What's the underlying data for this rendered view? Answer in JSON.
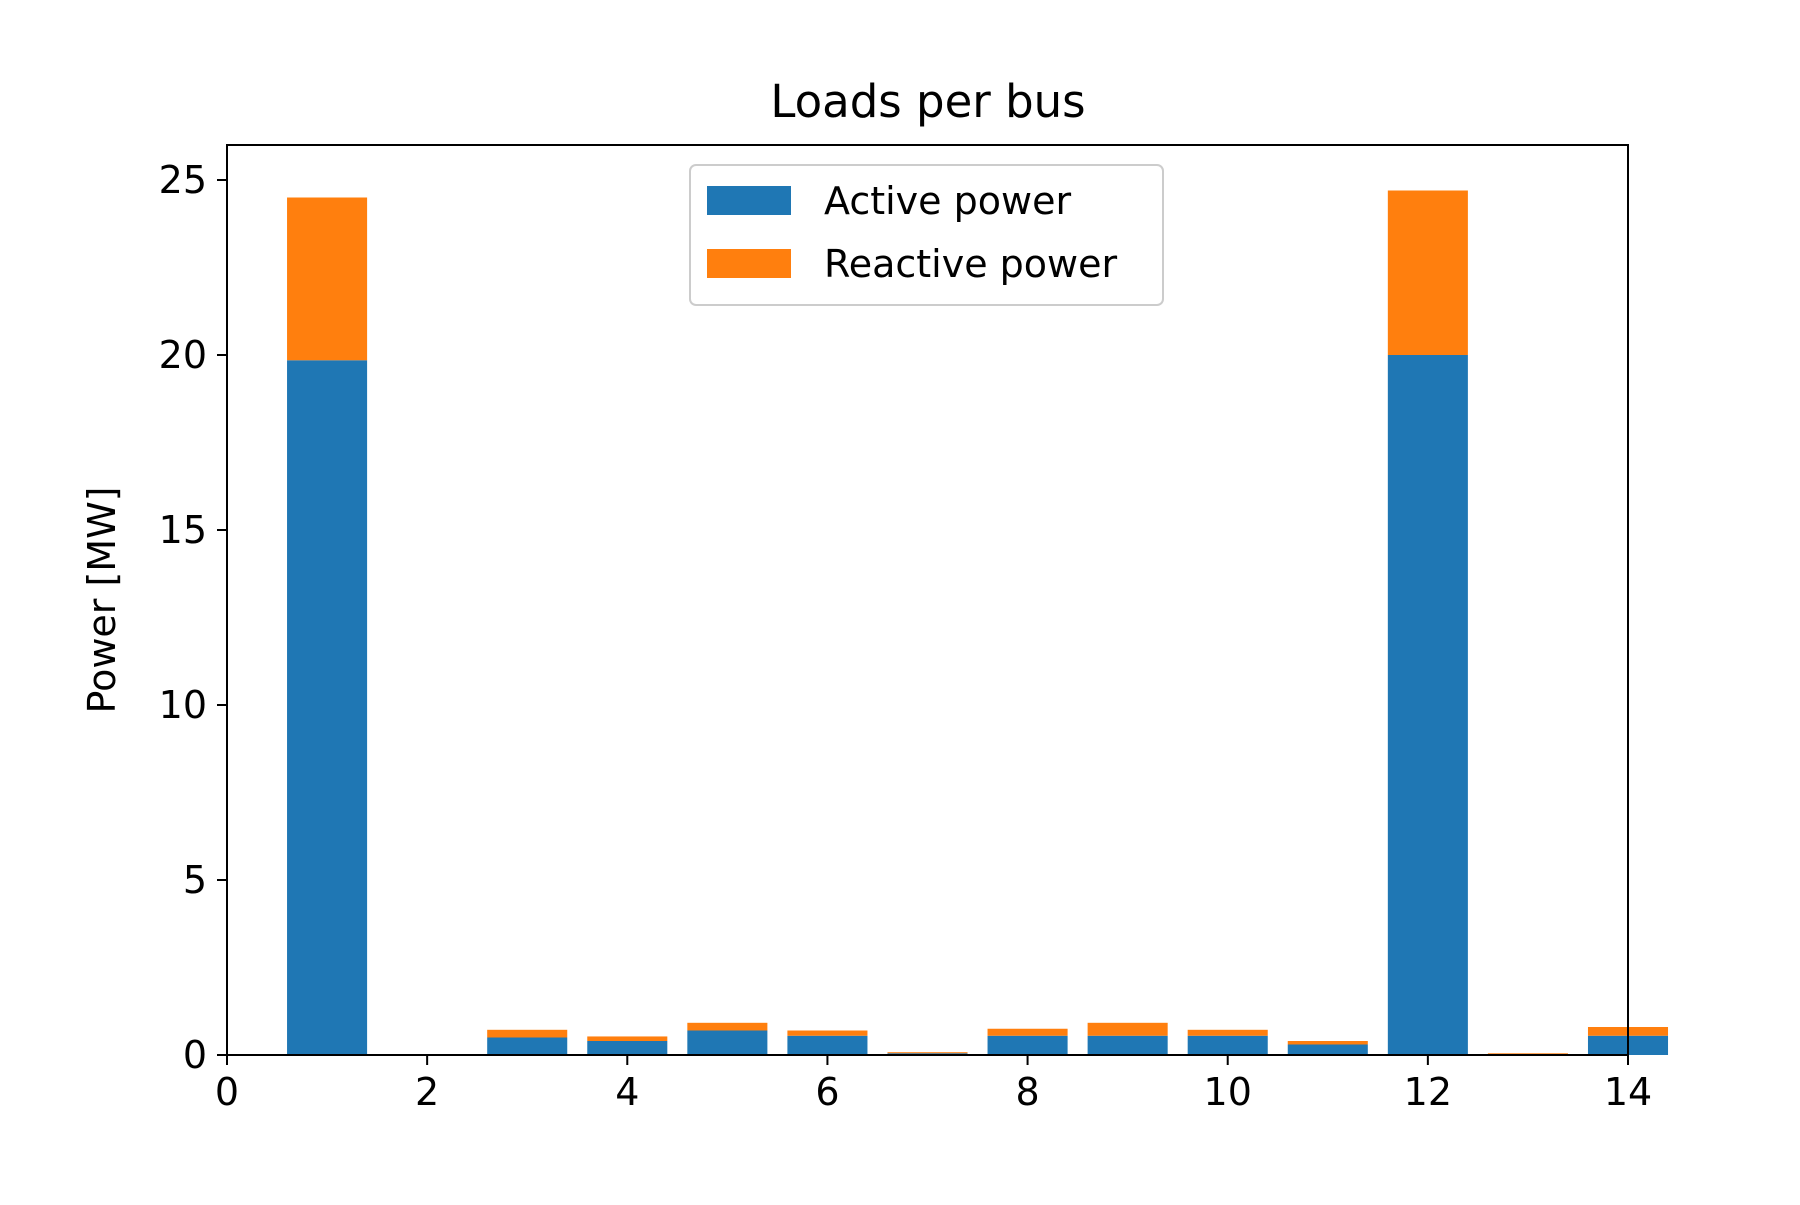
{
  "chart_data": {
    "type": "bar",
    "stacked": true,
    "title": "Loads per bus",
    "xlabel": "",
    "ylabel": "Power [MW]",
    "xlim": [
      0,
      14
    ],
    "ylim": [
      0,
      26
    ],
    "xticks": [
      0,
      2,
      4,
      6,
      8,
      10,
      12,
      14
    ],
    "yticks": [
      0,
      5,
      10,
      15,
      20,
      25
    ],
    "grid": false,
    "legend_position": "top-center",
    "x": [
      1,
      2,
      3,
      4,
      5,
      6,
      7,
      8,
      9,
      10,
      11,
      12,
      13,
      14
    ],
    "series": [
      {
        "name": "Active power",
        "color": "#1f77b4",
        "values": [
          19.85,
          0,
          0.5,
          0.4,
          0.7,
          0.55,
          0.05,
          0.55,
          0.55,
          0.55,
          0.3,
          20.0,
          0.03,
          0.55
        ]
      },
      {
        "name": "Reactive power",
        "color": "#ff7f0e",
        "values": [
          4.65,
          0,
          0.22,
          0.13,
          0.22,
          0.15,
          0.03,
          0.2,
          0.37,
          0.17,
          0.1,
          4.7,
          0.02,
          0.25
        ]
      }
    ]
  }
}
